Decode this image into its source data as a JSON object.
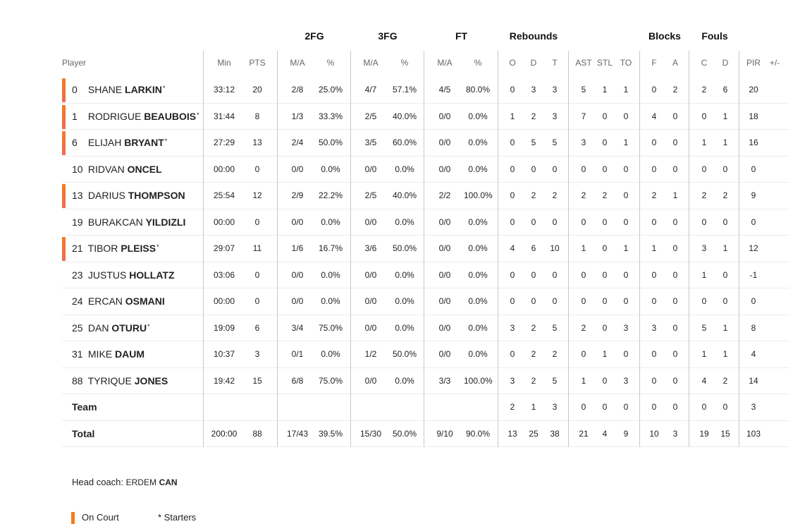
{
  "group_headers": {
    "fg2": "2FG",
    "fg3": "3FG",
    "ft": "FT",
    "reb": "Rebounds",
    "blk": "Blocks",
    "fouls": "Fouls"
  },
  "sub_headers": {
    "player": "Player",
    "min": "Min",
    "pts": "PTS",
    "fg2_ma": "M/A",
    "fg2_pct": "%",
    "fg3_ma": "M/A",
    "fg3_pct": "%",
    "ft_ma": "M/A",
    "ft_pct": "%",
    "reb_o": "O",
    "reb_d": "D",
    "reb_t": "T",
    "ast": "AST",
    "stl": "STL",
    "to": "TO",
    "blk_f": "F",
    "blk_a": "A",
    "foul_c": "C",
    "foul_d": "D",
    "pir": "PIR",
    "pm": "+/-"
  },
  "players": [
    {
      "num": "0",
      "first": "SHANE",
      "last": "LARKIN",
      "star": "*",
      "oncourt": true,
      "min": "33:12",
      "pts": "20",
      "fg2_ma": "2/8",
      "fg2_pct": "25.0%",
      "fg3_ma": "4/7",
      "fg3_pct": "57.1%",
      "ft_ma": "4/5",
      "ft_pct": "80.0%",
      "reb_o": "0",
      "reb_d": "3",
      "reb_t": "3",
      "ast": "5",
      "stl": "1",
      "to": "1",
      "blk_f": "0",
      "blk_a": "2",
      "foul_c": "2",
      "foul_d": "6",
      "pir": "20",
      "pm": ""
    },
    {
      "num": "1",
      "first": "RODRIGUE",
      "last": "BEAUBOIS",
      "star": "*",
      "oncourt": true,
      "min": "31:44",
      "pts": "8",
      "fg2_ma": "1/3",
      "fg2_pct": "33.3%",
      "fg3_ma": "2/5",
      "fg3_pct": "40.0%",
      "ft_ma": "0/0",
      "ft_pct": "0.0%",
      "reb_o": "1",
      "reb_d": "2",
      "reb_t": "3",
      "ast": "7",
      "stl": "0",
      "to": "0",
      "blk_f": "4",
      "blk_a": "0",
      "foul_c": "0",
      "foul_d": "1",
      "pir": "18",
      "pm": ""
    },
    {
      "num": "6",
      "first": "ELIJAH",
      "last": "BRYANT",
      "star": "*",
      "oncourt": true,
      "min": "27:29",
      "pts": "13",
      "fg2_ma": "2/4",
      "fg2_pct": "50.0%",
      "fg3_ma": "3/5",
      "fg3_pct": "60.0%",
      "ft_ma": "0/0",
      "ft_pct": "0.0%",
      "reb_o": "0",
      "reb_d": "5",
      "reb_t": "5",
      "ast": "3",
      "stl": "0",
      "to": "1",
      "blk_f": "0",
      "blk_a": "0",
      "foul_c": "1",
      "foul_d": "1",
      "pir": "16",
      "pm": ""
    },
    {
      "num": "10",
      "first": "RIDVAN",
      "last": "ONCEL",
      "star": "",
      "oncourt": false,
      "min": "00:00",
      "pts": "0",
      "fg2_ma": "0/0",
      "fg2_pct": "0.0%",
      "fg3_ma": "0/0",
      "fg3_pct": "0.0%",
      "ft_ma": "0/0",
      "ft_pct": "0.0%",
      "reb_o": "0",
      "reb_d": "0",
      "reb_t": "0",
      "ast": "0",
      "stl": "0",
      "to": "0",
      "blk_f": "0",
      "blk_a": "0",
      "foul_c": "0",
      "foul_d": "0",
      "pir": "0",
      "pm": ""
    },
    {
      "num": "13",
      "first": "DARIUS",
      "last": "THOMPSON",
      "star": "",
      "oncourt": true,
      "min": "25:54",
      "pts": "12",
      "fg2_ma": "2/9",
      "fg2_pct": "22.2%",
      "fg3_ma": "2/5",
      "fg3_pct": "40.0%",
      "ft_ma": "2/2",
      "ft_pct": "100.0%",
      "reb_o": "0",
      "reb_d": "2",
      "reb_t": "2",
      "ast": "2",
      "stl": "2",
      "to": "0",
      "blk_f": "2",
      "blk_a": "1",
      "foul_c": "2",
      "foul_d": "2",
      "pir": "9",
      "pm": ""
    },
    {
      "num": "19",
      "first": "BURAKCAN",
      "last": "YILDIZLI",
      "star": "",
      "oncourt": false,
      "min": "00:00",
      "pts": "0",
      "fg2_ma": "0/0",
      "fg2_pct": "0.0%",
      "fg3_ma": "0/0",
      "fg3_pct": "0.0%",
      "ft_ma": "0/0",
      "ft_pct": "0.0%",
      "reb_o": "0",
      "reb_d": "0",
      "reb_t": "0",
      "ast": "0",
      "stl": "0",
      "to": "0",
      "blk_f": "0",
      "blk_a": "0",
      "foul_c": "0",
      "foul_d": "0",
      "pir": "0",
      "pm": ""
    },
    {
      "num": "21",
      "first": "TIBOR",
      "last": "PLEISS",
      "star": "*",
      "oncourt": true,
      "min": "29:07",
      "pts": "11",
      "fg2_ma": "1/6",
      "fg2_pct": "16.7%",
      "fg3_ma": "3/6",
      "fg3_pct": "50.0%",
      "ft_ma": "0/0",
      "ft_pct": "0.0%",
      "reb_o": "4",
      "reb_d": "6",
      "reb_t": "10",
      "ast": "1",
      "stl": "0",
      "to": "1",
      "blk_f": "1",
      "blk_a": "0",
      "foul_c": "3",
      "foul_d": "1",
      "pir": "12",
      "pm": ""
    },
    {
      "num": "23",
      "first": "JUSTUS",
      "last": "HOLLATZ",
      "star": "",
      "oncourt": false,
      "min": "03:06",
      "pts": "0",
      "fg2_ma": "0/0",
      "fg2_pct": "0.0%",
      "fg3_ma": "0/0",
      "fg3_pct": "0.0%",
      "ft_ma": "0/0",
      "ft_pct": "0.0%",
      "reb_o": "0",
      "reb_d": "0",
      "reb_t": "0",
      "ast": "0",
      "stl": "0",
      "to": "0",
      "blk_f": "0",
      "blk_a": "0",
      "foul_c": "1",
      "foul_d": "0",
      "pir": "-1",
      "pm": ""
    },
    {
      "num": "24",
      "first": "ERCAN",
      "last": "OSMANI",
      "star": "",
      "oncourt": false,
      "min": "00:00",
      "pts": "0",
      "fg2_ma": "0/0",
      "fg2_pct": "0.0%",
      "fg3_ma": "0/0",
      "fg3_pct": "0.0%",
      "ft_ma": "0/0",
      "ft_pct": "0.0%",
      "reb_o": "0",
      "reb_d": "0",
      "reb_t": "0",
      "ast": "0",
      "stl": "0",
      "to": "0",
      "blk_f": "0",
      "blk_a": "0",
      "foul_c": "0",
      "foul_d": "0",
      "pir": "0",
      "pm": ""
    },
    {
      "num": "25",
      "first": "DAN",
      "last": "OTURU",
      "star": "*",
      "oncourt": false,
      "min": "19:09",
      "pts": "6",
      "fg2_ma": "3/4",
      "fg2_pct": "75.0%",
      "fg3_ma": "0/0",
      "fg3_pct": "0.0%",
      "ft_ma": "0/0",
      "ft_pct": "0.0%",
      "reb_o": "3",
      "reb_d": "2",
      "reb_t": "5",
      "ast": "2",
      "stl": "0",
      "to": "3",
      "blk_f": "3",
      "blk_a": "0",
      "foul_c": "5",
      "foul_d": "1",
      "pir": "8",
      "pm": ""
    },
    {
      "num": "31",
      "first": "MIKE",
      "last": "DAUM",
      "star": "",
      "oncourt": false,
      "min": "10:37",
      "pts": "3",
      "fg2_ma": "0/1",
      "fg2_pct": "0.0%",
      "fg3_ma": "1/2",
      "fg3_pct": "50.0%",
      "ft_ma": "0/0",
      "ft_pct": "0.0%",
      "reb_o": "0",
      "reb_d": "2",
      "reb_t": "2",
      "ast": "0",
      "stl": "1",
      "to": "0",
      "blk_f": "0",
      "blk_a": "0",
      "foul_c": "1",
      "foul_d": "1",
      "pir": "4",
      "pm": ""
    },
    {
      "num": "88",
      "first": "TYRIQUE",
      "last": "JONES",
      "star": "",
      "oncourt": false,
      "min": "19:42",
      "pts": "15",
      "fg2_ma": "6/8",
      "fg2_pct": "75.0%",
      "fg3_ma": "0/0",
      "fg3_pct": "0.0%",
      "ft_ma": "3/3",
      "ft_pct": "100.0%",
      "reb_o": "3",
      "reb_d": "2",
      "reb_t": "5",
      "ast": "1",
      "stl": "0",
      "to": "3",
      "blk_f": "0",
      "blk_a": "0",
      "foul_c": "4",
      "foul_d": "2",
      "pir": "14",
      "pm": ""
    }
  ],
  "team_row": {
    "label": "Team",
    "min": "",
    "pts": "",
    "fg2_ma": "",
    "fg2_pct": "",
    "fg3_ma": "",
    "fg3_pct": "",
    "ft_ma": "",
    "ft_pct": "",
    "reb_o": "2",
    "reb_d": "1",
    "reb_t": "3",
    "ast": "0",
    "stl": "0",
    "to": "0",
    "blk_f": "0",
    "blk_a": "0",
    "foul_c": "0",
    "foul_d": "0",
    "pir": "3",
    "pm": ""
  },
  "total_row": {
    "label": "Total",
    "min": "200:00",
    "pts": "88",
    "fg2_ma": "17/43",
    "fg2_pct": "39.5%",
    "fg3_ma": "15/30",
    "fg3_pct": "50.0%",
    "ft_ma": "9/10",
    "ft_pct": "90.0%",
    "reb_o": "13",
    "reb_d": "25",
    "reb_t": "38",
    "ast": "21",
    "stl": "4",
    "to": "9",
    "blk_f": "10",
    "blk_a": "3",
    "foul_c": "19",
    "foul_d": "15",
    "pir": "103",
    "pm": ""
  },
  "coach": {
    "label": "Head coach:",
    "first": "ERDEM",
    "last": "CAN"
  },
  "legend": {
    "on_court": "On Court",
    "starters": "* Starters"
  },
  "colors": {
    "on_court_bar": "#f47b20",
    "divider": "#c8c8c8"
  }
}
